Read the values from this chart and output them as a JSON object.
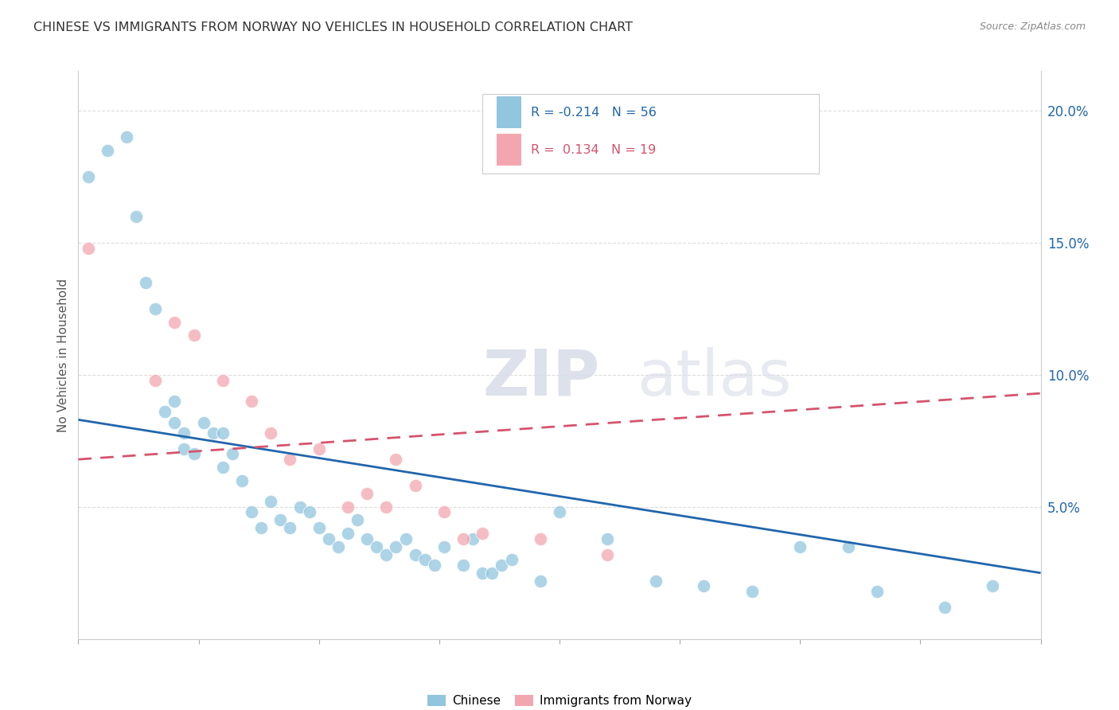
{
  "title": "CHINESE VS IMMIGRANTS FROM NORWAY NO VEHICLES IN HOUSEHOLD CORRELATION CHART",
  "source": "Source: ZipAtlas.com",
  "ylabel": "No Vehicles in Household",
  "right_yticks": [
    "20.0%",
    "15.0%",
    "10.0%",
    "5.0%"
  ],
  "right_ytick_vals": [
    0.2,
    0.15,
    0.1,
    0.05
  ],
  "xlim": [
    0.0,
    0.1
  ],
  "ylim": [
    0.0,
    0.215
  ],
  "chinese_R": "-0.214",
  "chinese_N": "56",
  "norway_R": "0.134",
  "norway_N": "19",
  "chinese_color": "#92c5de",
  "norway_color": "#f4a6b0",
  "chinese_line_color": "#2166ac",
  "norway_line_color": "#d6536d",
  "watermark_zip": "ZIP",
  "watermark_atlas": "atlas",
  "chinese_line_x": [
    0.0,
    0.1
  ],
  "chinese_line_y": [
    0.083,
    0.025
  ],
  "norway_line_x": [
    0.0,
    0.1
  ],
  "norway_line_y": [
    0.068,
    0.093
  ],
  "chinese_points_x": [
    0.001,
    0.003,
    0.005,
    0.006,
    0.007,
    0.008,
    0.009,
    0.01,
    0.01,
    0.011,
    0.011,
    0.012,
    0.013,
    0.014,
    0.015,
    0.015,
    0.016,
    0.017,
    0.018,
    0.019,
    0.02,
    0.021,
    0.022,
    0.023,
    0.024,
    0.025,
    0.026,
    0.027,
    0.028,
    0.029,
    0.03,
    0.031,
    0.032,
    0.033,
    0.034,
    0.035,
    0.036,
    0.037,
    0.038,
    0.04,
    0.041,
    0.042,
    0.043,
    0.044,
    0.045,
    0.048,
    0.05,
    0.055,
    0.06,
    0.065,
    0.07,
    0.075,
    0.08,
    0.083,
    0.09,
    0.095
  ],
  "chinese_points_y": [
    0.175,
    0.185,
    0.19,
    0.16,
    0.135,
    0.125,
    0.086,
    0.082,
    0.09,
    0.078,
    0.072,
    0.07,
    0.082,
    0.078,
    0.078,
    0.065,
    0.07,
    0.06,
    0.048,
    0.042,
    0.052,
    0.045,
    0.042,
    0.05,
    0.048,
    0.042,
    0.038,
    0.035,
    0.04,
    0.045,
    0.038,
    0.035,
    0.032,
    0.035,
    0.038,
    0.032,
    0.03,
    0.028,
    0.035,
    0.028,
    0.038,
    0.025,
    0.025,
    0.028,
    0.03,
    0.022,
    0.048,
    0.038,
    0.022,
    0.02,
    0.018,
    0.035,
    0.035,
    0.018,
    0.012,
    0.02
  ],
  "norway_points_x": [
    0.001,
    0.008,
    0.01,
    0.012,
    0.015,
    0.018,
    0.02,
    0.022,
    0.025,
    0.028,
    0.03,
    0.032,
    0.033,
    0.035,
    0.038,
    0.04,
    0.042,
    0.048,
    0.055
  ],
  "norway_points_y": [
    0.148,
    0.098,
    0.12,
    0.115,
    0.098,
    0.09,
    0.078,
    0.068,
    0.072,
    0.05,
    0.055,
    0.05,
    0.068,
    0.058,
    0.048,
    0.038,
    0.04,
    0.038,
    0.032
  ]
}
